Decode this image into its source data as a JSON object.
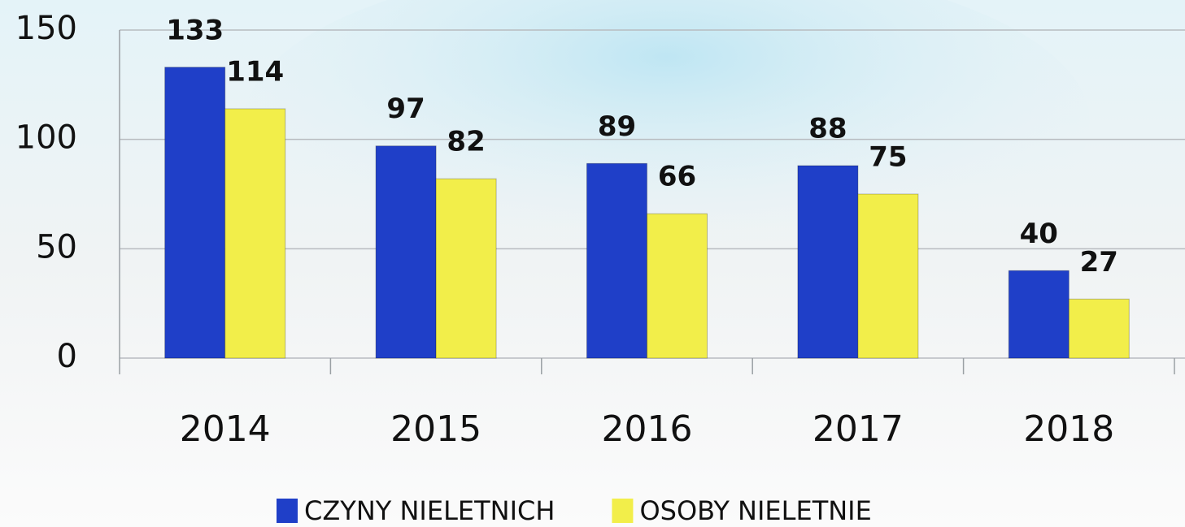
{
  "chart_data": {
    "type": "bar",
    "categories": [
      "2014",
      "2015",
      "2016",
      "2017",
      "2018"
    ],
    "series": [
      {
        "name": "CZYNY NIELETNICH",
        "color": "#1f3fc8",
        "values": [
          133,
          97,
          89,
          88,
          40
        ]
      },
      {
        "name": "OSOBY NIELETNIE",
        "color": "#f2ee4a",
        "values": [
          114,
          82,
          66,
          75,
          27
        ]
      }
    ],
    "ylim": [
      0,
      150
    ],
    "yticks": [
      0,
      50,
      100,
      150
    ],
    "grid": true,
    "legend": "bottom"
  }
}
